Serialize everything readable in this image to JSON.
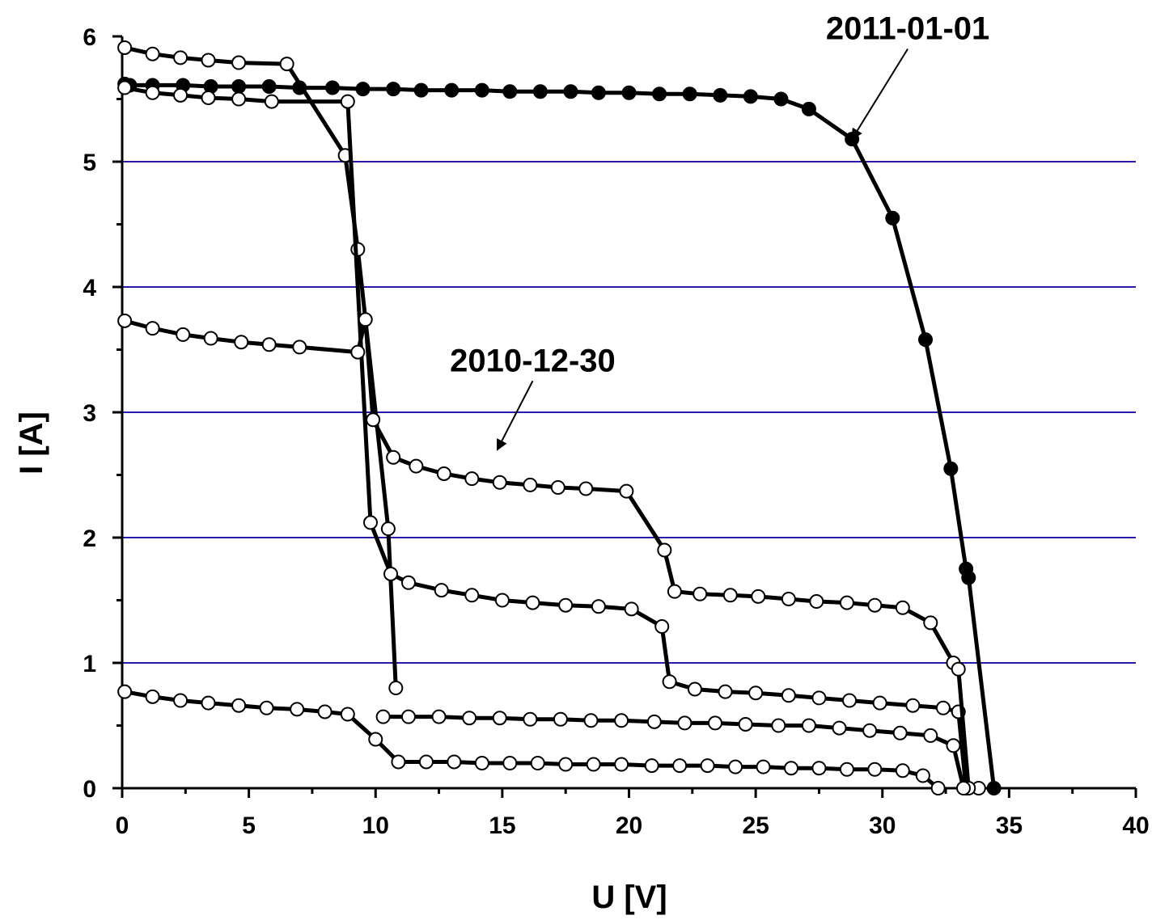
{
  "chart_data": {
    "type": "line",
    "xlabel": "U [V]",
    "ylabel": "I [A]",
    "xlim": [
      0,
      40
    ],
    "ylim": [
      0,
      6
    ],
    "x_ticks": [
      0,
      5,
      10,
      15,
      20,
      25,
      30,
      35,
      40
    ],
    "y_ticks": [
      0,
      1,
      2,
      3,
      4,
      5,
      6
    ],
    "grid": "horizontal",
    "grid_color": "#2a1aa8",
    "annotations": [
      {
        "text": "2011-01-01",
        "arrow_to": [
          28.8,
          5.18
        ],
        "arrow_from": [
          31.0,
          5.9
        ]
      },
      {
        "text": "2010-12-30",
        "arrow_to": [
          14.8,
          2.7
        ],
        "arrow_from": [
          16.2,
          3.25
        ]
      }
    ],
    "series": [
      {
        "marker": "filled",
        "x": [
          0.1,
          0.3,
          1.2,
          2.4,
          3.5,
          4.6,
          5.8,
          7.0,
          8.3,
          9.5,
          10.7,
          11.8,
          13.0,
          14.2,
          15.3,
          16.5,
          17.7,
          18.8,
          20.0,
          21.2,
          22.4,
          23.6,
          24.8,
          26.0,
          27.1,
          28.8,
          30.4,
          31.7,
          32.7,
          33.3,
          33.4,
          34.4
        ],
        "y": [
          5.62,
          5.61,
          5.61,
          5.61,
          5.6,
          5.6,
          5.6,
          5.59,
          5.59,
          5.58,
          5.58,
          5.57,
          5.57,
          5.57,
          5.56,
          5.56,
          5.56,
          5.55,
          5.55,
          5.54,
          5.54,
          5.53,
          5.52,
          5.5,
          5.42,
          5.18,
          4.55,
          3.58,
          2.55,
          1.75,
          1.68,
          0.0
        ]
      },
      {
        "marker": "open",
        "x": [
          0.1,
          1.2,
          2.3,
          3.4,
          4.6,
          6.5,
          8.8,
          9.3,
          10.5,
          10.8
        ],
        "y": [
          5.91,
          5.86,
          5.83,
          5.81,
          5.79,
          5.78,
          5.05,
          4.3,
          2.07,
          0.8
        ]
      },
      {
        "marker": "open",
        "x": [
          0.1,
          1.2,
          2.3,
          3.4,
          4.6,
          5.9,
          8.9,
          9.8,
          10.6,
          11.3,
          12.6,
          13.8,
          15.0,
          16.2,
          17.5,
          18.8,
          20.1,
          21.3,
          21.6,
          22.6,
          23.8,
          25.0,
          26.3,
          27.5,
          28.7,
          29.9,
          31.2,
          32.4,
          33.0,
          33.3,
          33.8
        ],
        "y": [
          5.59,
          5.55,
          5.53,
          5.51,
          5.5,
          5.48,
          5.48,
          2.12,
          1.71,
          1.64,
          1.58,
          1.54,
          1.5,
          1.48,
          1.46,
          1.45,
          1.43,
          1.29,
          0.85,
          0.79,
          0.77,
          0.76,
          0.74,
          0.72,
          0.7,
          0.68,
          0.66,
          0.64,
          0.61,
          0.0,
          0.0
        ]
      },
      {
        "marker": "open",
        "x": [
          0.1,
          1.2,
          2.4,
          3.5,
          4.7,
          5.8,
          7.0,
          9.3,
          9.6,
          9.9,
          10.7,
          11.6,
          12.7,
          13.8,
          14.9,
          16.1,
          17.2,
          18.3,
          19.9,
          21.4,
          21.8,
          22.8,
          24.0,
          25.1,
          26.3,
          27.4,
          28.6,
          29.7,
          30.8,
          31.9,
          32.8,
          33.0,
          33.4
        ],
        "y": [
          3.73,
          3.67,
          3.62,
          3.59,
          3.56,
          3.54,
          3.52,
          3.48,
          3.74,
          2.94,
          2.64,
          2.57,
          2.51,
          2.47,
          2.44,
          2.42,
          2.4,
          2.39,
          2.37,
          1.9,
          1.57,
          1.55,
          1.54,
          1.53,
          1.51,
          1.49,
          1.48,
          1.46,
          1.44,
          1.32,
          1.0,
          0.95,
          0.0
        ]
      },
      {
        "marker": "open",
        "x": [
          10.3,
          11.3,
          12.5,
          13.7,
          14.9,
          16.1,
          17.3,
          18.5,
          19.7,
          21.0,
          22.2,
          23.4,
          24.6,
          25.9,
          27.1,
          28.3,
          29.5,
          30.7,
          31.9,
          32.8,
          33.2
        ],
        "y": [
          0.57,
          0.57,
          0.57,
          0.56,
          0.56,
          0.55,
          0.55,
          0.54,
          0.54,
          0.53,
          0.52,
          0.52,
          0.51,
          0.5,
          0.5,
          0.48,
          0.46,
          0.44,
          0.42,
          0.34,
          0.0
        ]
      },
      {
        "marker": "open",
        "x": [
          0.1,
          1.2,
          2.3,
          3.4,
          4.6,
          5.7,
          6.9,
          8.0,
          8.9,
          10.0,
          10.9,
          12.0,
          13.1,
          14.2,
          15.3,
          16.4,
          17.5,
          18.6,
          19.7,
          20.9,
          22.0,
          23.1,
          24.2,
          25.3,
          26.4,
          27.5,
          28.6,
          29.7,
          30.8,
          31.6,
          32.2
        ],
        "y": [
          0.77,
          0.73,
          0.7,
          0.68,
          0.66,
          0.64,
          0.63,
          0.61,
          0.59,
          0.39,
          0.21,
          0.21,
          0.21,
          0.2,
          0.2,
          0.2,
          0.19,
          0.19,
          0.19,
          0.18,
          0.18,
          0.18,
          0.17,
          0.17,
          0.16,
          0.16,
          0.15,
          0.15,
          0.14,
          0.1,
          0.0
        ]
      }
    ]
  }
}
